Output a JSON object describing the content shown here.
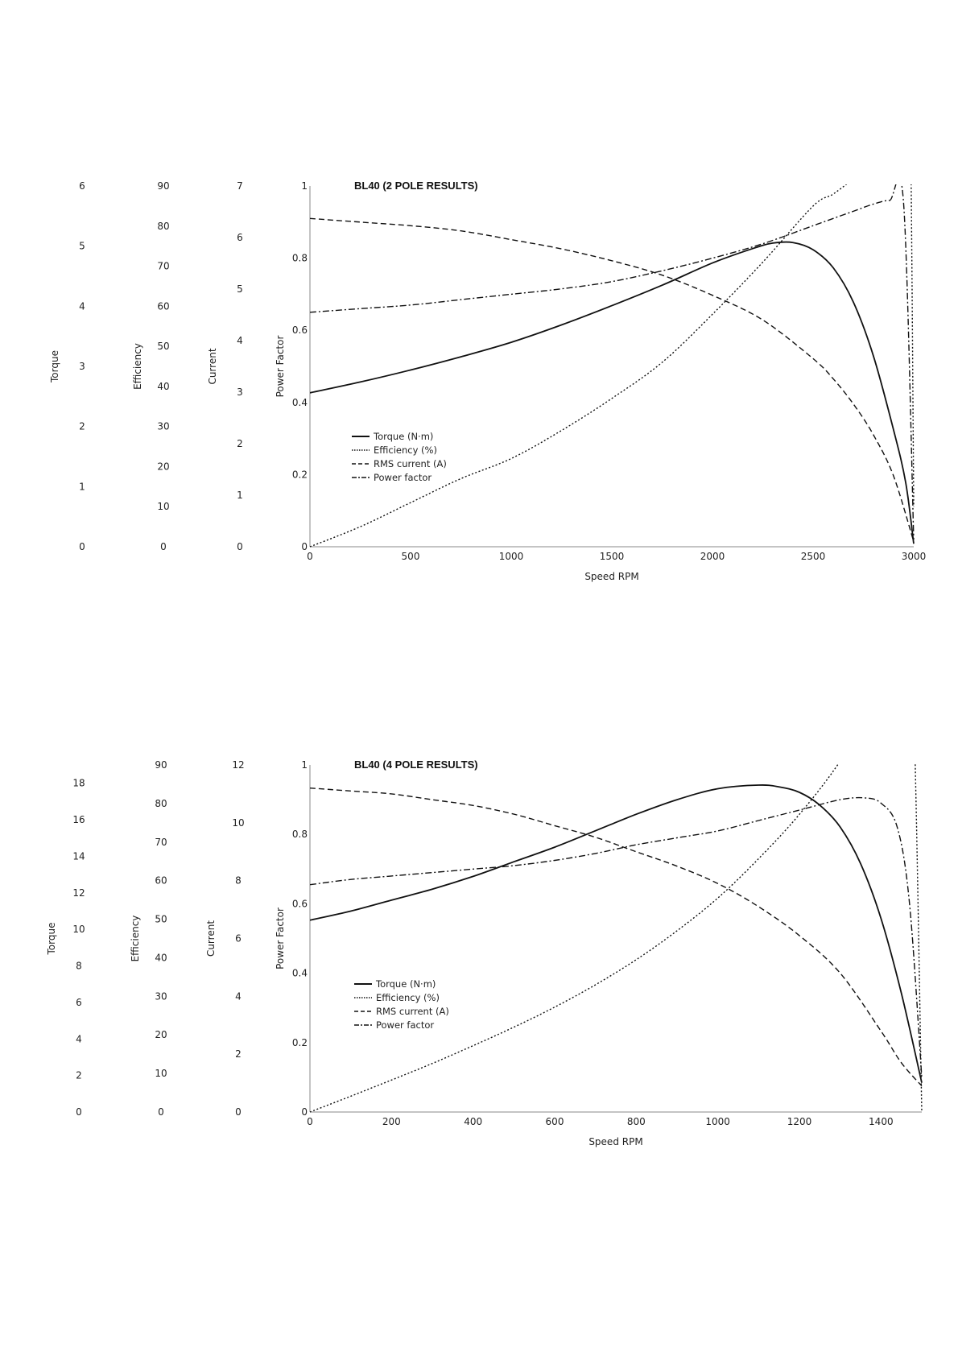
{
  "chart_data": [
    {
      "type": "line",
      "title": "BL40 (2 POLE RESULTS)",
      "xlabel": "Speed RPM",
      "xlim": [
        0,
        3000
      ],
      "xticks": [
        0,
        500,
        1000,
        1500,
        2000,
        2500,
        3000
      ],
      "grid": false,
      "legend_position": "bottom-left",
      "left_axes": [
        {
          "name": "Torque",
          "label": "Torque",
          "ticks": [
            0,
            1,
            2,
            3,
            4,
            5,
            6
          ],
          "ylim": [
            0,
            6
          ]
        },
        {
          "name": "Efficiency",
          "label": "Efficiency",
          "ticks": [
            0,
            10,
            20,
            30,
            40,
            50,
            60,
            70,
            80,
            90
          ],
          "ylim": [
            0,
            90
          ]
        },
        {
          "name": "Current",
          "label": "Current",
          "ticks": [
            0,
            1,
            2,
            3,
            4,
            5,
            6,
            7
          ],
          "ylim": [
            0,
            7
          ]
        },
        {
          "name": "Power Factor",
          "label": "Power Factor",
          "ticks": [
            "0",
            "0.2",
            "0.4",
            "0.6",
            "0.8",
            "1"
          ],
          "ylim": [
            0,
            1
          ]
        }
      ],
      "series": [
        {
          "name": "Torque (N·m)",
          "style": "solid",
          "axis": 0,
          "x": [
            0,
            250,
            500,
            750,
            1000,
            1250,
            1500,
            1750,
            2000,
            2200,
            2300,
            2400,
            2500,
            2600,
            2700,
            2800,
            2900,
            2960,
            3000
          ],
          "y": [
            2.56,
            2.74,
            2.94,
            3.16,
            3.4,
            3.69,
            4.01,
            4.35,
            4.72,
            4.96,
            5.05,
            5.06,
            4.94,
            4.64,
            4.07,
            3.17,
            1.94,
            1.07,
            0.05
          ]
        },
        {
          "name": "Efficiency (%)",
          "style": "dotted",
          "axis": 1,
          "x": [
            0,
            250,
            500,
            750,
            1000,
            1250,
            1500,
            1750,
            2000,
            2250,
            2500,
            2600,
            2700,
            2800,
            2900,
            2950,
            2970,
            2985,
            3000
          ],
          "y": [
            0,
            5,
            11,
            17,
            22,
            29,
            37,
            46,
            58,
            71,
            85,
            88,
            92,
            98,
            112,
            117,
            117,
            100,
            10
          ]
        },
        {
          "name": "RMS current (A)",
          "style": "dashed",
          "axis": 2,
          "x": [
            0,
            250,
            500,
            750,
            1000,
            1250,
            1500,
            1750,
            2000,
            2250,
            2500,
            2600,
            2700,
            2800,
            2900,
            3000
          ],
          "y": [
            6.37,
            6.3,
            6.23,
            6.13,
            5.96,
            5.78,
            5.55,
            5.27,
            4.88,
            4.4,
            3.65,
            3.26,
            2.77,
            2.17,
            1.37,
            0.1
          ]
        },
        {
          "name": "Power factor",
          "style": "dashdot",
          "axis": 3,
          "x": [
            0,
            250,
            500,
            750,
            1000,
            1250,
            1500,
            1750,
            2000,
            2250,
            2500,
            2600,
            2700,
            2800,
            2880,
            2950,
            3000
          ],
          "y": [
            0.65,
            0.66,
            0.67,
            0.685,
            0.7,
            0.715,
            0.735,
            0.765,
            0.8,
            0.84,
            0.89,
            0.91,
            0.93,
            0.95,
            0.96,
            0.95,
            0.02
          ]
        }
      ]
    },
    {
      "type": "line",
      "title": "BL40 (4 POLE RESULTS)",
      "xlabel": "Speed RPM",
      "xlim": [
        0,
        1500
      ],
      "xticks": [
        0,
        200,
        400,
        600,
        800,
        1000,
        1200,
        1400
      ],
      "grid": false,
      "legend_position": "bottom-left",
      "left_axes": [
        {
          "name": "Torque",
          "label": "Torque",
          "ticks": [
            0,
            2,
            4,
            6,
            8,
            10,
            12,
            14,
            16,
            18
          ],
          "ylim": [
            0,
            19
          ]
        },
        {
          "name": "Efficiency",
          "label": "Efficiency",
          "ticks": [
            0,
            10,
            20,
            30,
            40,
            50,
            60,
            70,
            80,
            90
          ],
          "ylim": [
            0,
            90
          ]
        },
        {
          "name": "Current",
          "label": "Current",
          "ticks": [
            0,
            2,
            4,
            6,
            8,
            10,
            12
          ],
          "ylim": [
            0,
            12
          ]
        },
        {
          "name": "Power Factor",
          "label": "Power Factor",
          "ticks": [
            "0",
            "0.2",
            "0.4",
            "0.6",
            "0.8",
            "1"
          ],
          "ylim": [
            0,
            1
          ]
        }
      ],
      "series": [
        {
          "name": "Torque (N·m)",
          "style": "solid",
          "axis": 0,
          "x": [
            0,
            100,
            200,
            300,
            400,
            500,
            600,
            700,
            800,
            900,
            1000,
            1100,
            1150,
            1200,
            1250,
            1300,
            1350,
            1400,
            1450,
            1500
          ],
          "y": [
            10.5,
            11.0,
            11.6,
            12.2,
            12.9,
            13.7,
            14.5,
            15.4,
            16.3,
            17.1,
            17.7,
            17.9,
            17.8,
            17.5,
            16.8,
            15.6,
            13.6,
            10.6,
            6.5,
            1.6
          ]
        },
        {
          "name": "Efficiency (%)",
          "style": "dotted",
          "axis": 1,
          "x": [
            0,
            100,
            200,
            300,
            400,
            500,
            600,
            700,
            800,
            900,
            1000,
            1100,
            1200,
            1300,
            1400,
            1440,
            1460,
            1480,
            1500
          ],
          "y": [
            0,
            4.1,
            8.3,
            12.6,
            17.2,
            22.0,
            27.2,
            33.0,
            39.5,
            47.0,
            55.5,
            65.7,
            77.2,
            91.0,
            108.5,
            114.5,
            114.5,
            105,
            0
          ]
        },
        {
          "name": "RMS current (A)",
          "style": "dashed",
          "axis": 2,
          "x": [
            0,
            100,
            200,
            300,
            400,
            500,
            600,
            700,
            800,
            900,
            1000,
            1100,
            1200,
            1300,
            1400,
            1450,
            1500
          ],
          "y": [
            11.2,
            11.1,
            11.0,
            10.8,
            10.6,
            10.3,
            9.9,
            9.5,
            9.0,
            8.5,
            7.9,
            7.1,
            6.1,
            4.8,
            2.8,
            1.7,
            0.9
          ]
        },
        {
          "name": "Power factor",
          "style": "dashdot",
          "axis": 3,
          "x": [
            0,
            100,
            200,
            300,
            400,
            500,
            600,
            700,
            800,
            900,
            1000,
            1100,
            1200,
            1300,
            1360,
            1400,
            1440,
            1470,
            1500
          ],
          "y": [
            0.655,
            0.67,
            0.68,
            0.69,
            0.7,
            0.71,
            0.725,
            0.745,
            0.77,
            0.79,
            0.81,
            0.84,
            0.87,
            0.9,
            0.905,
            0.89,
            0.82,
            0.6,
            0.1
          ]
        }
      ]
    }
  ]
}
